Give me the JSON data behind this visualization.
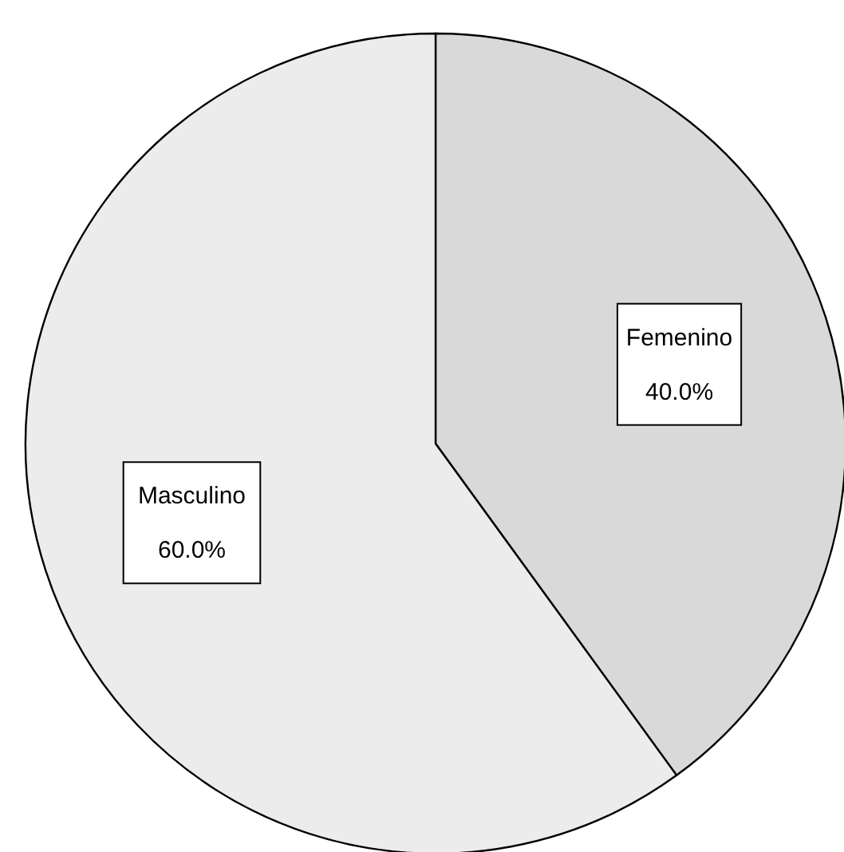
{
  "chart_data": {
    "type": "pie",
    "categories": [
      "Femenino",
      "Masculino"
    ],
    "values": [
      40,
      60
    ],
    "colors": [
      "#d9d9d9",
      "#ececec"
    ],
    "value_labels": [
      "40.0%",
      "60.0%"
    ]
  }
}
